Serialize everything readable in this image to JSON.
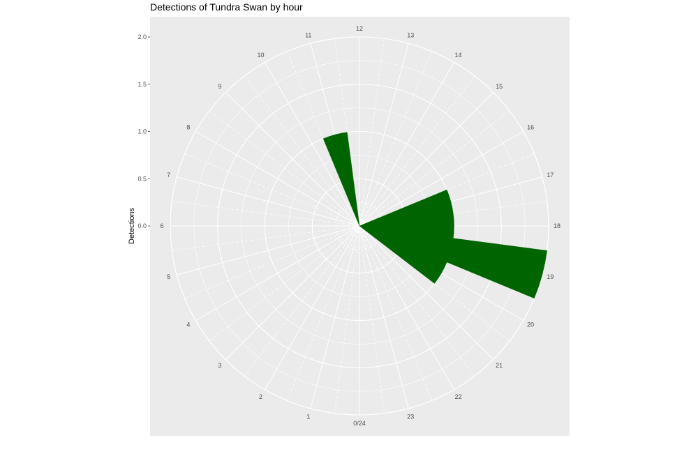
{
  "chart_data": {
    "type": "bar",
    "coord": "polar",
    "title": "Detections of Tundra Swan by hour",
    "ylabel": "Detections",
    "xlabel": "",
    "ylim": [
      0,
      2.0
    ],
    "y_ticks": [
      "0.0",
      "0.5",
      "1.0",
      "1.5",
      "2.0"
    ],
    "categories": [
      "0/24",
      "1",
      "2",
      "3",
      "4",
      "5",
      "6",
      "7",
      "8",
      "9",
      "10",
      "11",
      "12",
      "13",
      "14",
      "15",
      "16",
      "17",
      "18",
      "19",
      "20",
      "21",
      "22",
      "23"
    ],
    "values": [
      0,
      0,
      0,
      0,
      0,
      0,
      0,
      0,
      0,
      0,
      0,
      1,
      0,
      0,
      0,
      0,
      0,
      1,
      1,
      2,
      1,
      0,
      0,
      0
    ],
    "series_color": "#006400",
    "panel_background": "#ebebeb",
    "grid_color": "#ffffff",
    "grid": true
  }
}
